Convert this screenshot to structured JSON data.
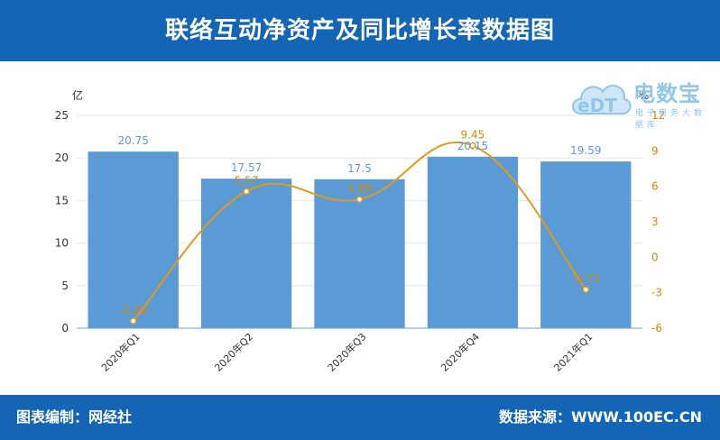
{
  "header": {
    "title": "联络互动净资产及同比增长率数据图"
  },
  "footer": {
    "left": "图表编制：网经社",
    "right": "数据来源：WWW.100EC.CN"
  },
  "watermark": {
    "brand": "电数宝",
    "logo_text": "eDT",
    "subtitle": "电子商务大数据库"
  },
  "colors": {
    "bar": "#5b9bd5",
    "line": "#e49a16",
    "header_bg": "#1565b7",
    "bar_label": "#5b9bd5",
    "line_label": "#d4860b"
  },
  "chart_data": {
    "type": "bar",
    "categories": [
      "2020年Q1",
      "2020年Q2",
      "2020年Q3",
      "2020年Q4",
      "2021年Q1"
    ],
    "y_unit_label": "亿",
    "y2_unit_label": "%",
    "ylim": [
      0,
      25
    ],
    "y_ticks": [
      0,
      5,
      10,
      15,
      20,
      25
    ],
    "y2lim": [
      -6,
      12
    ],
    "y2_ticks": [
      -6,
      -3,
      0,
      3,
      6,
      9,
      12
    ],
    "series": [
      {
        "type": "bar",
        "axis": "left",
        "values": [
          20.75,
          17.57,
          17.5,
          20.15,
          19.59
        ],
        "labels": [
          "20.75",
          "17.57",
          "17.5",
          "20.15",
          "19.59"
        ]
      },
      {
        "type": "line",
        "axis": "right",
        "values": [
          -5.39,
          5.57,
          4.89,
          9.45,
          -2.73
        ],
        "labels": [
          "-5.39",
          "5.57",
          "4.89",
          "9.45",
          "-2.73"
        ]
      }
    ],
    "grid": true
  }
}
